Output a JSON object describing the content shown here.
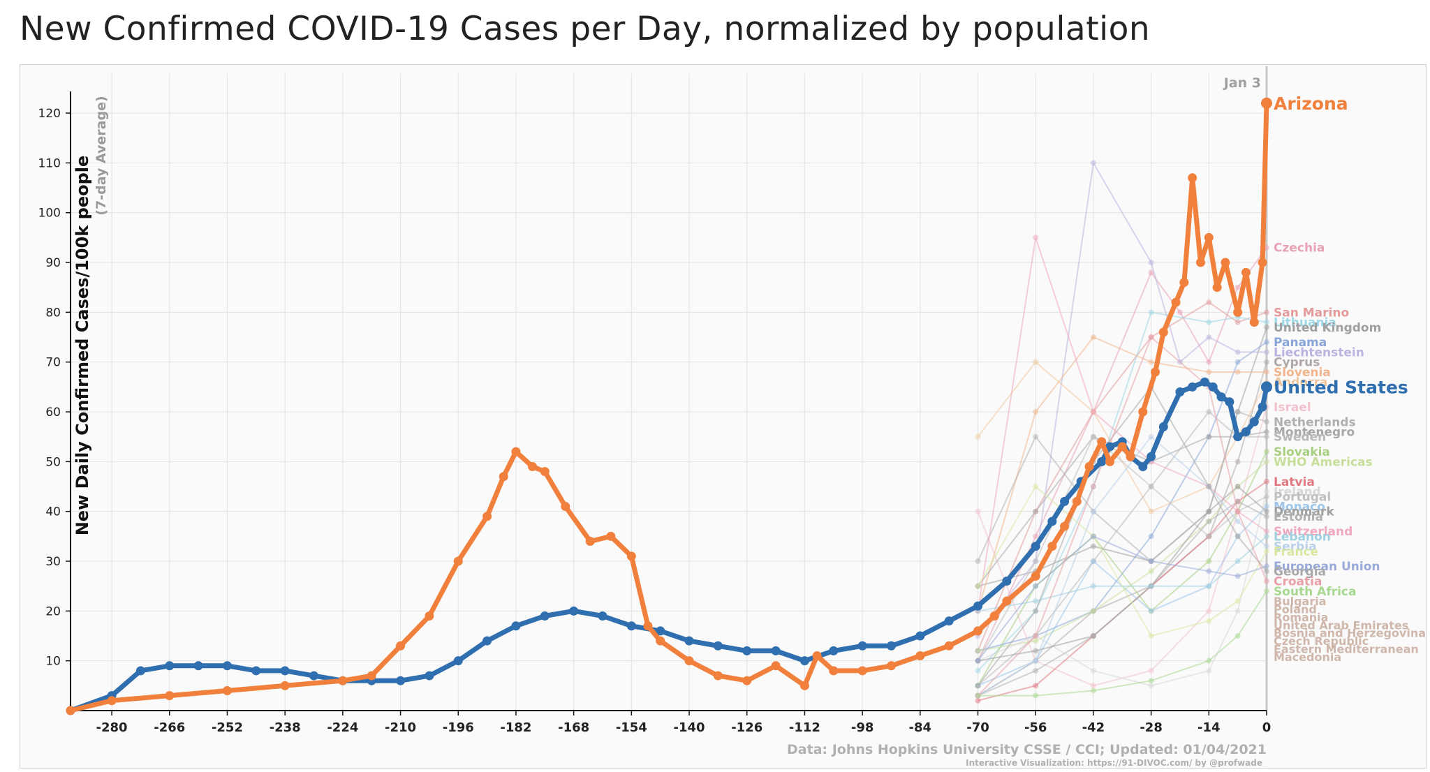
{
  "page": {
    "title": "New Confirmed COVID-19 Cases per Day, normalized by population"
  },
  "chart_data": {
    "type": "line",
    "ylabel": "New Daily Confirmed Cases/100k people",
    "ylabel_sub": "(7-day Average)",
    "xlim": [
      -290,
      0
    ],
    "ylim": [
      0,
      128
    ],
    "x_ticks": [
      -280,
      -266,
      -252,
      -238,
      -224,
      -210,
      -196,
      -182,
      -168,
      -154,
      -140,
      -126,
      -112,
      -98,
      -84,
      -70,
      -56,
      -42,
      -28,
      -14,
      0
    ],
    "y_ticks": [
      10,
      20,
      30,
      40,
      50,
      60,
      70,
      80,
      90,
      100,
      110,
      120
    ],
    "grid": true,
    "date_marker": {
      "x": 0,
      "label": "Jan 3"
    },
    "source": "Data: Johns Hopkins University CSSE / CCI; Updated: 01/04/2021",
    "credit": "Interactive Visualization: https://91-DIVOC.com/ by @profwade_",
    "colors": {
      "arizona": "#f0803c",
      "united_states": "#2f6faf",
      "axis": "#111111",
      "grid": "#e2e2e2",
      "muted": "#a8a8a8"
    },
    "series": [
      {
        "name": "Arizona",
        "color": "#f0803c",
        "highlight": true,
        "x": [
          -290,
          -280,
          -266,
          -252,
          -238,
          -224,
          -217,
          -210,
          -203,
          -196,
          -189,
          -185,
          -182,
          -178,
          -175,
          -170,
          -164,
          -159,
          -154,
          -150,
          -147,
          -140,
          -133,
          -126,
          -119,
          -112,
          -109,
          -105,
          -98,
          -91,
          -84,
          -77,
          -70,
          -66,
          -63,
          -56,
          -52,
          -49,
          -46,
          -43,
          -40,
          -38,
          -35,
          -33,
          -30,
          -27,
          -25,
          -22,
          -20,
          -18,
          -16,
          -14,
          -12,
          -10,
          -7,
          -5,
          -3,
          -1,
          0
        ],
        "y": [
          0,
          2,
          3,
          4,
          5,
          6,
          7,
          13,
          19,
          30,
          39,
          47,
          52,
          49,
          48,
          41,
          34,
          35,
          31,
          17,
          14,
          10,
          7,
          6,
          9,
          5,
          11,
          8,
          8,
          9,
          11,
          13,
          16,
          19,
          22,
          27,
          33,
          37,
          42,
          49,
          54,
          50,
          53,
          51,
          60,
          68,
          76,
          82,
          86,
          107,
          90,
          95,
          85,
          90,
          80,
          88,
          78,
          90,
          122
        ]
      },
      {
        "name": "United States",
        "color": "#2f6faf",
        "highlight": true,
        "x": [
          -290,
          -280,
          -273,
          -266,
          -259,
          -252,
          -245,
          -238,
          -231,
          -224,
          -217,
          -210,
          -203,
          -196,
          -189,
          -182,
          -175,
          -168,
          -161,
          -154,
          -147,
          -140,
          -133,
          -126,
          -119,
          -112,
          -105,
          -98,
          -91,
          -84,
          -77,
          -70,
          -63,
          -56,
          -52,
          -49,
          -45,
          -40,
          -38,
          -35,
          -33,
          -30,
          -28,
          -25,
          -21,
          -18,
          -15,
          -13,
          -11,
          -9,
          -7,
          -5,
          -3,
          -1,
          0
        ],
        "y": [
          0,
          3,
          8,
          9,
          9,
          9,
          8,
          8,
          7,
          6,
          6,
          6,
          7,
          10,
          14,
          17,
          19,
          20,
          19,
          17,
          16,
          14,
          13,
          12,
          12,
          10,
          12,
          13,
          13,
          15,
          18,
          21,
          26,
          33,
          38,
          42,
          46,
          50,
          53,
          54,
          51,
          49,
          51,
          57,
          64,
          65,
          66,
          65,
          63,
          62,
          55,
          56,
          58,
          61,
          65
        ]
      },
      {
        "name": "Czechia",
        "color": "#e8a0b4",
        "x": [
          -70,
          -56,
          -42,
          -28,
          -21,
          -14,
          -7,
          0
        ],
        "y": [
          10,
          35,
          60,
          88,
          80,
          70,
          85,
          93
        ]
      },
      {
        "name": "San Marino",
        "color": "#e29a9a",
        "x": [
          -70,
          -56,
          -42,
          -28,
          -14,
          -7,
          0
        ],
        "y": [
          12,
          40,
          60,
          75,
          82,
          78,
          80
        ]
      },
      {
        "name": "Lithuania",
        "color": "#9dd7e6",
        "x": [
          -70,
          -56,
          -42,
          -28,
          -14,
          -7,
          0
        ],
        "y": [
          8,
          20,
          45,
          80,
          78,
          79,
          78
        ]
      },
      {
        "name": "United Kingdom",
        "color": "#a0a0a0",
        "x": [
          -70,
          -56,
          -42,
          -28,
          -14,
          -7,
          0
        ],
        "y": [
          25,
          28,
          33,
          30,
          40,
          60,
          77
        ]
      },
      {
        "name": "Panama",
        "color": "#8aa6d8",
        "x": [
          -70,
          -56,
          -42,
          -28,
          -14,
          -7,
          0
        ],
        "y": [
          12,
          15,
          20,
          35,
          55,
          70,
          74
        ]
      },
      {
        "name": "Liechtenstein",
        "color": "#b9b3e0",
        "x": [
          -70,
          -56,
          -42,
          -28,
          -21,
          -14,
          -7,
          0
        ],
        "y": [
          15,
          30,
          110,
          90,
          70,
          75,
          72,
          72
        ]
      },
      {
        "name": "Cyprus",
        "color": "#b0a8a8",
        "x": [
          -70,
          -56,
          -42,
          -28,
          -14,
          -7,
          0
        ],
        "y": [
          3,
          10,
          20,
          25,
          35,
          50,
          70
        ]
      },
      {
        "name": "Slovenia",
        "color": "#f2b48c",
        "x": [
          -70,
          -56,
          -42,
          -28,
          -14,
          -7,
          0
        ],
        "y": [
          20,
          60,
          75,
          70,
          68,
          68,
          68
        ]
      },
      {
        "name": "Andorra",
        "color": "#f0c8a0",
        "x": [
          -70,
          -56,
          -42,
          -28,
          -14,
          -7,
          0
        ],
        "y": [
          55,
          70,
          60,
          40,
          45,
          55,
          66
        ]
      },
      {
        "name": "Israel",
        "color": "#f2c2cc",
        "x": [
          -70,
          -56,
          -42,
          -28,
          -14,
          -7,
          0
        ],
        "y": [
          40,
          10,
          5,
          8,
          20,
          40,
          61
        ]
      },
      {
        "name": "Netherlands",
        "color": "#b0b0b0",
        "x": [
          -70,
          -56,
          -42,
          -28,
          -14,
          -7,
          0
        ],
        "y": [
          30,
          55,
          40,
          30,
          40,
          60,
          58
        ]
      },
      {
        "name": "Montenegro",
        "color": "#a8a8a8",
        "x": [
          -70,
          -56,
          -42,
          -28,
          -14,
          -7,
          0
        ],
        "y": [
          25,
          40,
          55,
          50,
          55,
          55,
          56
        ]
      },
      {
        "name": "Sweden",
        "color": "#b8b8b8",
        "x": [
          -70,
          -56,
          -42,
          -28,
          -14,
          -7,
          0
        ],
        "y": [
          5,
          15,
          30,
          45,
          60,
          55,
          55
        ]
      },
      {
        "name": "Slovakia",
        "color": "#a8cf80",
        "x": [
          -70,
          -56,
          -42,
          -28,
          -14,
          -7,
          0
        ],
        "y": [
          5,
          25,
          35,
          20,
          30,
          40,
          52
        ]
      },
      {
        "name": "WHO Americas",
        "color": "#c7df9a",
        "x": [
          -70,
          -56,
          -42,
          -28,
          -14,
          -7,
          0
        ],
        "y": [
          12,
          14,
          20,
          28,
          38,
          45,
          50
        ]
      },
      {
        "name": "Latvia",
        "color": "#e07880",
        "x": [
          -70,
          -56,
          -42,
          -28,
          -14,
          -7,
          0
        ],
        "y": [
          2,
          5,
          15,
          25,
          35,
          42,
          46
        ]
      },
      {
        "name": "Ireland",
        "color": "#d8d8d8",
        "x": [
          -70,
          -56,
          -42,
          -28,
          -14,
          -7,
          0
        ],
        "y": [
          10,
          15,
          8,
          5,
          8,
          20,
          44
        ]
      },
      {
        "name": "Portugal",
        "color": "#c0c0c0",
        "x": [
          -70,
          -56,
          -42,
          -28,
          -14,
          -7,
          0
        ],
        "y": [
          10,
          30,
          55,
          45,
          35,
          40,
          43
        ]
      },
      {
        "name": "Monaco",
        "color": "#9ec5e8",
        "x": [
          -70,
          -56,
          -42,
          -28,
          -14,
          -7,
          0
        ],
        "y": [
          5,
          10,
          30,
          20,
          25,
          35,
          41
        ]
      },
      {
        "name": "Denmark",
        "color": "#a0a0a0",
        "x": [
          -70,
          -56,
          -42,
          -28,
          -14,
          -7,
          0
        ],
        "y": [
          10,
          12,
          15,
          25,
          40,
          45,
          40
        ]
      },
      {
        "name": "Estonia",
        "color": "#b0b0b0",
        "x": [
          -70,
          -56,
          -42,
          -28,
          -14,
          -7,
          0
        ],
        "y": [
          3,
          8,
          15,
          25,
          38,
          42,
          39
        ]
      },
      {
        "name": "Switzerland",
        "color": "#f0a8c0",
        "x": [
          -70,
          -56,
          -42,
          -28,
          -14,
          -7,
          0
        ],
        "y": [
          20,
          95,
          60,
          50,
          45,
          40,
          36
        ]
      },
      {
        "name": "Lebanon",
        "color": "#9fd0e0",
        "x": [
          -70,
          -56,
          -42,
          -28,
          -14,
          -7,
          0
        ],
        "y": [
          20,
          22,
          25,
          25,
          25,
          30,
          35
        ]
      },
      {
        "name": "Serbia",
        "color": "#b8d0e8",
        "x": [
          -70,
          -56,
          -42,
          -28,
          -14,
          -7,
          0
        ],
        "y": [
          3,
          10,
          40,
          55,
          45,
          38,
          33
        ]
      },
      {
        "name": "France",
        "color": "#d8e8a0",
        "x": [
          -70,
          -56,
          -42,
          -28,
          -14,
          -7,
          0
        ],
        "y": [
          25,
          45,
          35,
          15,
          18,
          22,
          32
        ]
      },
      {
        "name": "European Union",
        "color": "#9aaad8",
        "x": [
          -70,
          -56,
          -42,
          -28,
          -14,
          -7,
          0
        ],
        "y": [
          10,
          25,
          35,
          30,
          28,
          27,
          29
        ]
      },
      {
        "name": "Georgia",
        "color": "#a8a8a8",
        "x": [
          -70,
          -56,
          -42,
          -28,
          -14,
          -7,
          0
        ],
        "y": [
          5,
          20,
          50,
          65,
          45,
          35,
          28
        ]
      },
      {
        "name": "Croatia",
        "color": "#e8a0a8",
        "x": [
          -70,
          -56,
          -42,
          -28,
          -14,
          -7,
          0
        ],
        "y": [
          3,
          15,
          45,
          75,
          65,
          40,
          26
        ]
      },
      {
        "name": "South Africa",
        "color": "#a8d890",
        "x": [
          -70,
          -56,
          -42,
          -28,
          -14,
          -7,
          0
        ],
        "y": [
          3,
          3,
          4,
          6,
          10,
          15,
          24
        ]
      }
    ],
    "other_labels": [
      "Bulgaria",
      "Poland",
      "Romania",
      "United Arab Emirates",
      "Bosnia and Herzegovina",
      "Czech Republic",
      "Eastern Mediterranean",
      "Macedonia"
    ]
  }
}
